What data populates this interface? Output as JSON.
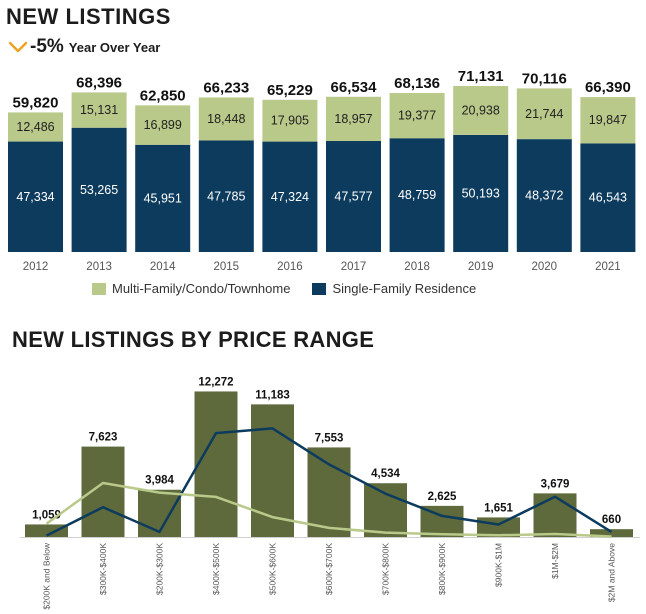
{
  "header": {
    "title": "NEW LISTINGS",
    "yoy_pct": "-5%",
    "yoy_label": "Year Over Year",
    "yoy_icon": "chevron-down-icon"
  },
  "section2": {
    "title": "NEW LISTINGS BY PRICE RANGE"
  },
  "legend": {
    "multi": "Multi-Family/Condo/Townhome",
    "single": "Single-Family Residence"
  },
  "colors": {
    "multi": "#b9c98a",
    "single": "#0d3b5e",
    "price_bar": "#5e6a3c",
    "line_dark": "#0d3b5e",
    "line_light": "#b9c98a",
    "accent": "#f0a020"
  },
  "chart_data": [
    {
      "type": "bar",
      "stacked": true,
      "categories": [
        "2012",
        "2013",
        "2014",
        "2015",
        "2016",
        "2017",
        "2018",
        "2019",
        "2020",
        "2021"
      ],
      "series": [
        {
          "name": "Single-Family Residence",
          "values": [
            47334,
            53265,
            45951,
            47785,
            47324,
            47577,
            48759,
            50193,
            48372,
            46543
          ]
        },
        {
          "name": "Multi-Family/Condo/Townhome",
          "values": [
            12486,
            15131,
            16899,
            18448,
            17905,
            18957,
            19377,
            20938,
            21744,
            19847
          ]
        }
      ],
      "totals": [
        59820,
        68396,
        62850,
        66233,
        65229,
        66534,
        68136,
        71131,
        70116,
        66390
      ],
      "series_labels": {
        "single": [
          "47,334",
          "53,265",
          "45,951",
          "47,785",
          "47,324",
          "47,577",
          "48,759",
          "50,193",
          "48,372",
          "46,543"
        ],
        "multi": [
          "12,486",
          "15,131",
          "16,899",
          "18,448",
          "17,905",
          "18,957",
          "19,377",
          "20,938",
          "21,744",
          "19,847"
        ],
        "totals": [
          "59,820",
          "68,396",
          "62,850",
          "66,233",
          "65,229",
          "66,534",
          "68,136",
          "71,131",
          "70,116",
          "66,390"
        ]
      },
      "ylim": [
        0,
        72000
      ],
      "legend": "bottom"
    },
    {
      "type": "bar",
      "categories": [
        "$200K and Below",
        "$300K-$400K",
        "$200K-$300K",
        "$400K-$500K",
        "$500K-$600K",
        "$600K-$700K",
        "$700K-$800K",
        "$800K-$900K",
        "$900K-$1M",
        "$1M-$2M",
        "$2M and Above"
      ],
      "values": [
        1059,
        7623,
        3984,
        12272,
        11183,
        7553,
        4534,
        2625,
        1651,
        3679,
        660
      ],
      "value_labels": [
        "1,059",
        "7,623",
        "3,984",
        "12,272",
        "11,183",
        "7,553",
        "4,534",
        "2,625",
        "1,651",
        "3,679",
        "660"
      ],
      "lines": [
        {
          "color": "dark",
          "values": [
            120,
            2510,
            430,
            8760,
            9160,
            6120,
            3650,
            1780,
            1050,
            3400,
            430
          ]
        },
        {
          "color": "light",
          "values": [
            1120,
            4550,
            3740,
            3380,
            1680,
            770,
            370,
            230,
            140,
            250,
            40
          ]
        }
      ],
      "ylim": [
        0,
        12900
      ]
    }
  ]
}
